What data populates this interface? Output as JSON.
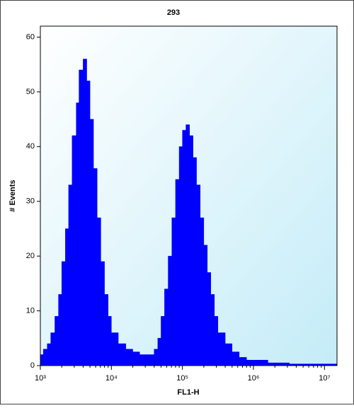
{
  "chart_data": {
    "type": "area",
    "title": "293",
    "x_label": "FL1-H",
    "y_label": "# Events",
    "x_scale": "log",
    "color": "#0000ff",
    "xlim": [
      1000,
      15000000
    ],
    "xticks": [
      {
        "value": 1000,
        "label": "10³"
      },
      {
        "value": 10000,
        "label": "10⁴"
      },
      {
        "value": 100000,
        "label": "10⁵"
      },
      {
        "value": 1000000,
        "label": "10⁶"
      },
      {
        "value": 10000000,
        "label": "10⁷"
      }
    ],
    "ylim": [
      0,
      62
    ],
    "yticks": [
      0,
      10,
      20,
      30,
      40,
      50,
      60
    ],
    "x": [
      1000,
      1100,
      1250,
      1400,
      1600,
      1800,
      2000,
      2250,
      2500,
      2800,
      3200,
      3500,
      4000,
      4500,
      5000,
      5600,
      6300,
      7100,
      8000,
      9000,
      10000,
      12500,
      16000,
      20000,
      25000,
      32000,
      40000,
      45000,
      50000,
      56000,
      63000,
      71000,
      80000,
      90000,
      100000,
      112000,
      126000,
      141000,
      158000,
      178000,
      200000,
      224000,
      251000,
      282000,
      316000,
      400000,
      500000,
      630000,
      800000,
      1000000,
      1600000,
      3200000,
      10000000,
      14000000
    ],
    "values": [
      2,
      3,
      4,
      6,
      9,
      13,
      19,
      25,
      33,
      42,
      48,
      54,
      56,
      52,
      45,
      36,
      27,
      19,
      13,
      9,
      6,
      4,
      3,
      2.5,
      2,
      2,
      3,
      5,
      9,
      14,
      20,
      27,
      34,
      40,
      43,
      44,
      42,
      38,
      33,
      27,
      22,
      17,
      13,
      9,
      6,
      4,
      2.5,
      1.5,
      1,
      1,
      0.5,
      0.3,
      0.3,
      0.3
    ]
  }
}
